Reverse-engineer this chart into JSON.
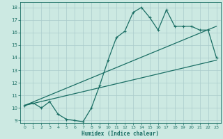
{
  "xlabel": "Humidex (Indice chaleur)",
  "bg_color": "#cce9e2",
  "grid_color": "#aacccc",
  "line_color": "#1a6e64",
  "xlim": [
    -0.5,
    23.5
  ],
  "ylim": [
    8.8,
    18.4
  ],
  "xticks": [
    0,
    1,
    2,
    3,
    4,
    5,
    6,
    7,
    8,
    9,
    10,
    11,
    12,
    13,
    14,
    15,
    16,
    17,
    18,
    19,
    20,
    21,
    22,
    23
  ],
  "yticks": [
    9,
    10,
    11,
    12,
    13,
    14,
    15,
    16,
    17,
    18
  ],
  "zigzag_x": [
    0,
    1,
    2,
    3,
    4,
    5,
    6,
    7,
    8,
    9,
    10,
    11,
    12,
    13,
    14,
    15,
    16,
    17,
    18,
    19,
    20,
    21,
    22,
    23
  ],
  "zigzag_y": [
    10.2,
    10.4,
    10.0,
    10.5,
    9.5,
    9.1,
    9.0,
    8.9,
    10.0,
    11.8,
    13.8,
    15.6,
    16.1,
    17.6,
    18.0,
    17.2,
    16.2,
    17.8,
    16.5,
    16.5,
    16.5,
    16.2,
    16.2,
    14.0
  ],
  "trend1_x": [
    0,
    23
  ],
  "trend1_y": [
    10.2,
    16.5
  ],
  "trend2_x": [
    0,
    23
  ],
  "trend2_y": [
    10.2,
    13.8
  ],
  "trend3_x": [
    0,
    23
  ],
  "trend3_y": [
    10.2,
    14.0
  ]
}
